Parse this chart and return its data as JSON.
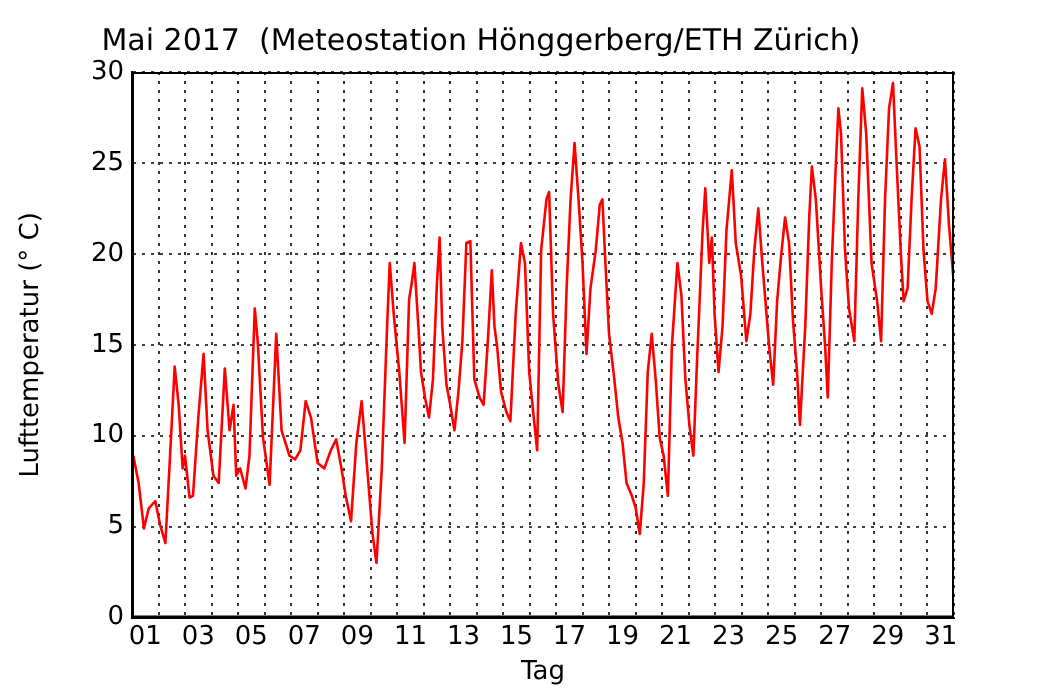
{
  "chart_data": {
    "type": "line",
    "title": "Mai 2017  (Meteostation Hönggerberg/ETH Zürich)",
    "xlabel": "Tag",
    "ylabel": "Lufttemperatur (° C)",
    "series": [
      {
        "color": "#ff0000",
        "x": [
          0.05,
          0.25,
          0.45,
          0.63,
          0.88,
          1.06,
          1.26,
          1.46,
          1.61,
          1.76,
          1.91,
          2.0,
          2.17,
          2.3,
          2.5,
          2.7,
          2.85,
          3.07,
          3.27,
          3.5,
          3.68,
          3.83,
          3.93,
          4.08,
          4.28,
          4.43,
          4.63,
          4.74,
          4.94,
          5.19,
          5.44,
          5.64,
          5.94,
          6.15,
          6.35,
          6.55,
          6.75,
          7.0,
          7.25,
          7.5,
          7.7,
          7.9,
          8.06,
          8.26,
          8.46,
          8.66,
          8.87,
          9.07,
          9.22,
          9.42,
          9.62,
          9.72,
          9.87,
          10.08,
          10.28,
          10.45,
          10.55,
          10.65,
          10.8,
          10.9,
          11.05,
          11.2,
          11.35,
          11.5,
          11.6,
          11.7,
          11.86,
          12.0,
          12.16,
          12.31,
          12.46,
          12.61,
          12.76,
          12.91,
          13.11,
          13.26,
          13.42,
          13.57,
          13.67,
          13.77,
          13.92,
          14.12,
          14.27,
          14.47,
          14.67,
          14.82,
          14.98,
          15.13,
          15.28,
          15.43,
          15.63,
          15.73,
          15.88,
          16.08,
          16.24,
          16.39,
          16.54,
          16.69,
          16.84,
          16.99,
          17.14,
          17.29,
          17.49,
          17.64,
          17.74,
          17.84,
          17.99,
          18.19,
          18.34,
          18.5,
          18.65,
          18.85,
          19.0,
          19.15,
          19.3,
          19.45,
          19.6,
          19.75,
          19.9,
          20.05,
          20.21,
          20.36,
          20.57,
          20.72,
          20.87,
          21.02,
          21.17,
          21.32,
          21.52,
          21.62,
          21.77,
          21.87,
          21.97,
          22.12,
          22.27,
          22.42,
          22.62,
          22.77,
          22.97,
          23.17,
          23.32,
          23.47,
          23.62,
          23.77,
          24.03,
          24.18,
          24.33,
          24.48,
          24.63,
          24.78,
          24.93,
          25.08,
          25.19,
          25.39,
          25.54,
          25.64,
          25.79,
          25.99,
          26.14,
          26.24,
          26.39,
          26.54,
          26.64,
          26.74,
          26.89,
          27.04,
          27.24,
          27.39,
          27.54,
          27.69,
          27.89,
          28.1,
          28.25,
          28.4,
          28.55,
          28.7,
          28.85,
          29.0,
          29.1,
          29.25,
          29.4,
          29.55,
          29.7,
          29.85,
          30.0,
          30.16,
          30.31,
          30.51,
          30.66,
          30.81,
          30.97
        ],
        "values": [
          8.9,
          7.4,
          4.9,
          6.0,
          6.4,
          5.1,
          4.1,
          9.6,
          13.8,
          11.7,
          8.2,
          8.9,
          6.6,
          6.7,
          11.0,
          14.5,
          10.3,
          7.8,
          7.4,
          13.7,
          10.3,
          11.7,
          7.8,
          8.2,
          7.1,
          8.9,
          17.0,
          15.2,
          9.9,
          7.3,
          15.6,
          10.3,
          8.9,
          8.7,
          9.2,
          11.9,
          11.0,
          8.5,
          8.2,
          9.2,
          9.8,
          8.2,
          6.7,
          5.3,
          9.6,
          11.9,
          8.2,
          4.6,
          3.0,
          8.2,
          16.0,
          19.5,
          16.7,
          13.5,
          9.6,
          17.5,
          18.4,
          19.5,
          16.0,
          13.5,
          12.1,
          11.0,
          13.1,
          18.4,
          20.9,
          16.0,
          12.8,
          11.7,
          10.3,
          12.4,
          15.2,
          20.6,
          20.7,
          13.1,
          12.1,
          11.7,
          15.2,
          19.1,
          16.0,
          14.9,
          12.4,
          11.3,
          10.8,
          16.7,
          20.6,
          19.5,
          13.5,
          11.3,
          9.2,
          20.2,
          23.0,
          23.4,
          16.7,
          12.8,
          11.3,
          18.1,
          23.0,
          26.1,
          23.0,
          19.5,
          14.5,
          18.1,
          20.2,
          22.7,
          23.0,
          19.9,
          15.6,
          13.1,
          11.0,
          9.6,
          7.4,
          6.7,
          6.0,
          4.6,
          7.4,
          13.5,
          15.6,
          13.1,
          9.9,
          8.9,
          6.7,
          14.9,
          19.5,
          17.7,
          13.1,
          10.6,
          8.9,
          14.5,
          21.3,
          23.6,
          19.5,
          20.9,
          16.7,
          13.5,
          16.0,
          21.3,
          24.6,
          20.6,
          18.8,
          15.2,
          16.7,
          20.2,
          22.5,
          19.5,
          14.9,
          12.8,
          17.4,
          19.9,
          22.0,
          20.6,
          16.3,
          13.5,
          10.6,
          16.0,
          22.0,
          24.8,
          23.0,
          18.1,
          14.9,
          12.1,
          19.5,
          24.8,
          28.0,
          26.6,
          20.2,
          17.0,
          15.2,
          23.0,
          29.1,
          26.6,
          19.5,
          17.4,
          15.2,
          23.0,
          28.0,
          29.4,
          24.5,
          19.9,
          17.4,
          18.1,
          23.0,
          26.9,
          25.9,
          20.2,
          17.4,
          16.7,
          18.1,
          23.0,
          25.2,
          21.6,
          18.8
        ]
      }
    ],
    "xlim": [
      0,
      31
    ],
    "xticks": [
      {
        "value": 0,
        "label": null
      },
      {
        "value": 1,
        "label": null
      },
      {
        "value": 2,
        "label": null
      },
      {
        "value": 3,
        "label": null
      },
      {
        "value": 4,
        "label": null
      },
      {
        "value": 5,
        "label": null
      },
      {
        "value": 6,
        "label": null
      },
      {
        "value": 7,
        "label": null
      },
      {
        "value": 8,
        "label": null
      },
      {
        "value": 9,
        "label": null
      },
      {
        "value": 10,
        "label": null
      },
      {
        "value": 11,
        "label": null
      },
      {
        "value": 12,
        "label": null
      },
      {
        "value": 13,
        "label": null
      },
      {
        "value": 14,
        "label": null
      },
      {
        "value": 15,
        "label": null
      },
      {
        "value": 16,
        "label": null
      },
      {
        "value": 17,
        "label": null
      },
      {
        "value": 18,
        "label": null
      },
      {
        "value": 19,
        "label": null
      },
      {
        "value": 20,
        "label": null
      },
      {
        "value": 21,
        "label": null
      },
      {
        "value": 22,
        "label": null
      },
      {
        "value": 23,
        "label": null
      },
      {
        "value": 24,
        "label": null
      },
      {
        "value": 25,
        "label": null
      },
      {
        "value": 26,
        "label": null
      },
      {
        "value": 27,
        "label": null
      },
      {
        "value": 28,
        "label": null
      },
      {
        "value": 29,
        "label": null
      },
      {
        "value": 30,
        "label": null
      },
      {
        "value": 31,
        "label": null
      },
      {
        "value": 0.5,
        "label": "01"
      },
      {
        "value": 2.5,
        "label": "03"
      },
      {
        "value": 4.5,
        "label": "05"
      },
      {
        "value": 6.5,
        "label": "07"
      },
      {
        "value": 8.5,
        "label": "09"
      },
      {
        "value": 10.5,
        "label": "11"
      },
      {
        "value": 12.5,
        "label": "13"
      },
      {
        "value": 14.5,
        "label": "15"
      },
      {
        "value": 16.5,
        "label": "17"
      },
      {
        "value": 18.5,
        "label": "19"
      },
      {
        "value": 20.5,
        "label": "21"
      },
      {
        "value": 22.5,
        "label": "23"
      },
      {
        "value": 24.5,
        "label": "25"
      },
      {
        "value": 26.5,
        "label": "27"
      },
      {
        "value": 28.5,
        "label": "29"
      },
      {
        "value": 30.5,
        "label": "31"
      }
    ],
    "ylim": [
      0,
      30
    ],
    "yticks": [
      0,
      5,
      10,
      15,
      20,
      25,
      30
    ],
    "grid": true,
    "legend": false,
    "marker": "none",
    "line_style": "solid"
  }
}
